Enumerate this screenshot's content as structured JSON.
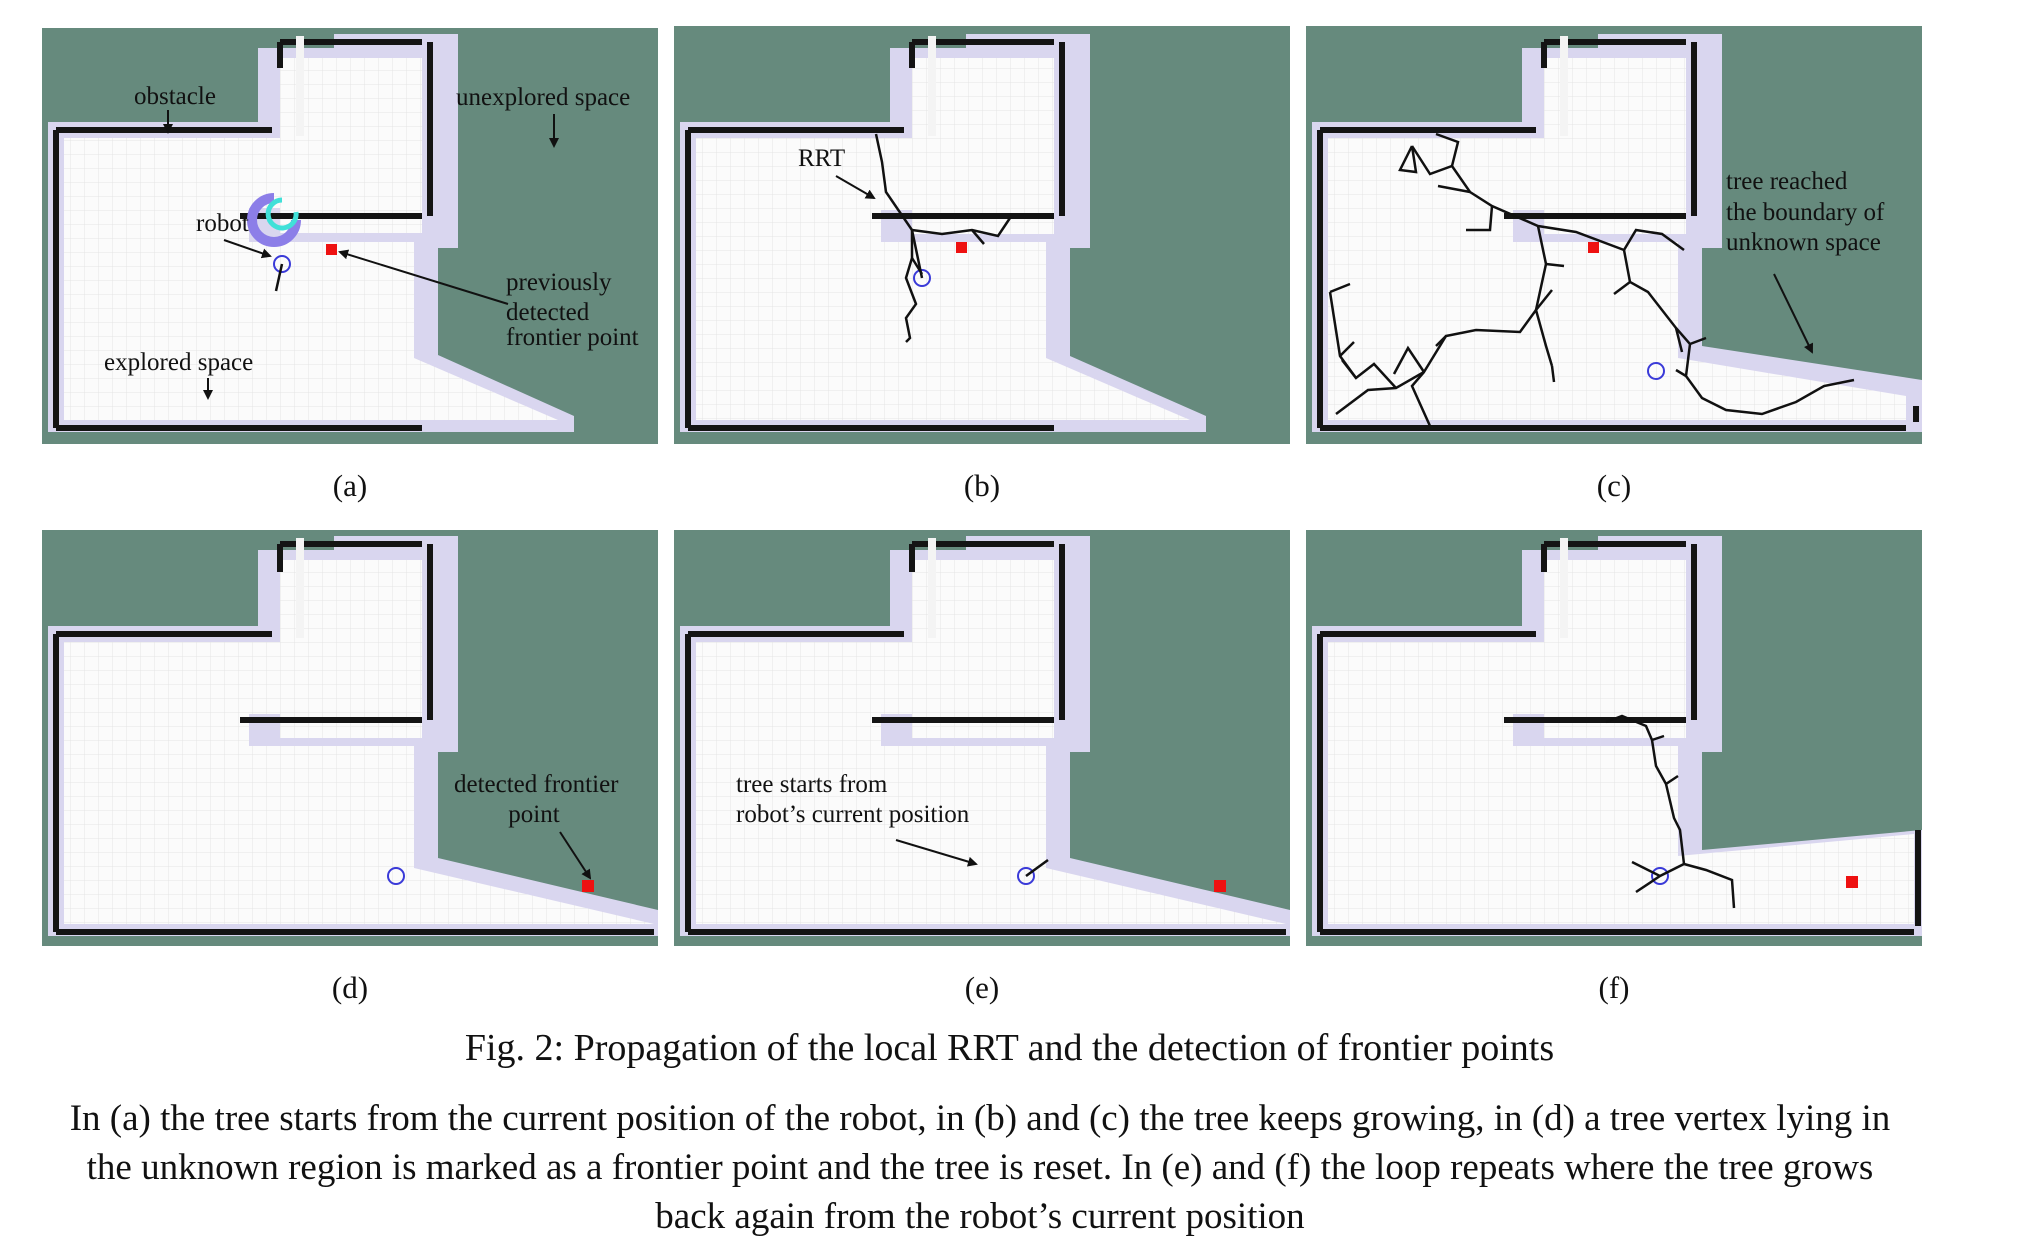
{
  "figure": {
    "panels": [
      {
        "id": "a",
        "label": "(a)",
        "annotations": [
          "obstacle",
          "unexplored space",
          "robot",
          "previously",
          "detected",
          "frontier point",
          "explored space"
        ]
      },
      {
        "id": "b",
        "label": "(b)",
        "annotations": [
          "RRT"
        ]
      },
      {
        "id": "c",
        "label": "(c)",
        "annotations": [
          "tree reached",
          "the boundary of",
          "unknown space"
        ]
      },
      {
        "id": "d",
        "label": "(d)",
        "annotations": [
          "detected frontier",
          "point"
        ]
      },
      {
        "id": "e",
        "label": "(e)",
        "annotations": [
          "tree starts from",
          "robot’s current position"
        ]
      },
      {
        "id": "f",
        "label": "(f)",
        "annotations": []
      }
    ],
    "caption_title": "Fig. 2: Propagation of the local RRT and the detection of frontier points",
    "caption_body": "In (a) the tree starts from the current position of the robot, in (b) and (c) the tree keeps growing, in (d) a tree vertex lying in the unknown region is marked as a frontier point and the tree is reset. In (e) and (f) the loop repeats where the tree grows back again from the robot’s current position"
  },
  "colors": {
    "unknown": "#668a7d",
    "free": "#fbfbfb",
    "inflation": "#d9d6ef",
    "obstacle": "#141414",
    "frontier": "#ee1111",
    "robot": "#3a3ad8",
    "tree": "#111111"
  }
}
